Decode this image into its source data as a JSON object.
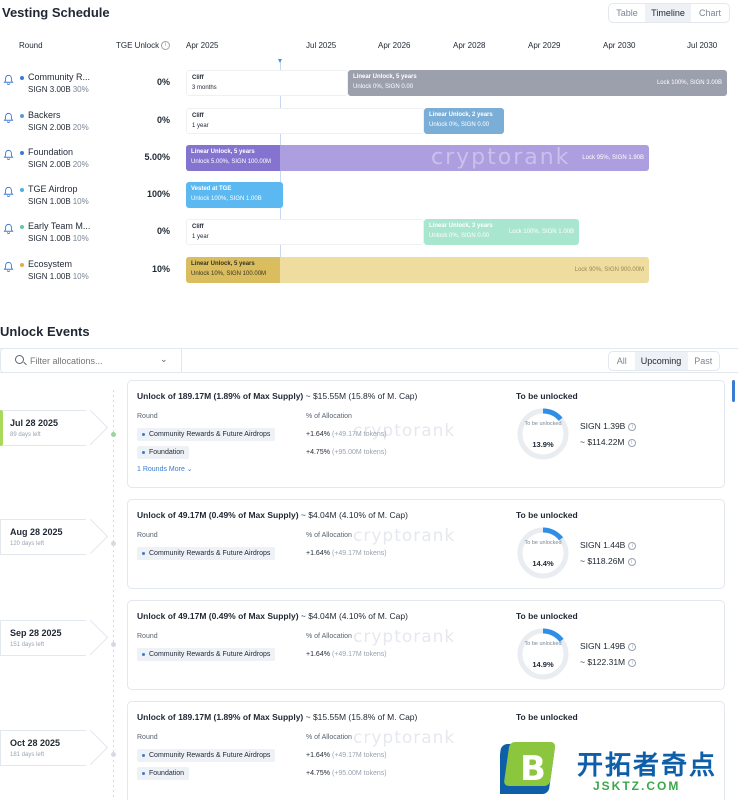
{
  "vesting": {
    "title": "Vesting Schedule",
    "views": [
      "Table",
      "Timeline",
      "Chart"
    ],
    "active_view": "Timeline",
    "headers": {
      "round": "Round",
      "tge": "TGE Unlock"
    },
    "timeline_labels": [
      "Apr 2025",
      "Jul 2025",
      "Apr 2026",
      "Apr 2028",
      "Apr 2029",
      "Apr 2030",
      "Jul 2030"
    ],
    "watermark": "cryptorank",
    "rows": [
      {
        "name": "Community R...",
        "amount": "SIGN 3.00B",
        "pct": "30%",
        "tge": "0%",
        "dot_color": "#3a7bd5",
        "cliff": {
          "l1": "Cliff",
          "l2": "3 months"
        },
        "main": {
          "l1": "Linear Unlock, 5 years",
          "l2": "Unlock 0%, SIGN 0.00",
          "right": "Lock 100%, SIGN 3.00B",
          "color": "#9c9fac"
        }
      },
      {
        "name": "Backers",
        "amount": "SIGN 2.00B",
        "pct": "20%",
        "tge": "0%",
        "dot_color": "#5a9bd5",
        "cliff": {
          "l1": "Cliff",
          "l2": "1 year"
        },
        "main": {
          "l1": "Linear Unlock, 2 years",
          "l2": "Unlock 0%, SIGN 0.00",
          "right": "",
          "color": "#7aaed6"
        }
      },
      {
        "name": "Foundation",
        "amount": "SIGN 2.00B",
        "pct": "20%",
        "tge": "5.00%",
        "dot_color": "#3a7bd5",
        "main": {
          "l1": "Linear Unlock, 5 years",
          "l2": "Unlock 5.00%, SIGN 100.00M",
          "right": "Lock 95%, SIGN 1.90B",
          "color": "#ad9ee0",
          "dark": "#8574cf"
        }
      },
      {
        "name": "TGE Airdrop",
        "amount": "SIGN 1.00B",
        "pct": "10%",
        "tge": "100%",
        "dot_color": "#4ab0e8",
        "main": {
          "l1": "Vested at TGE",
          "l2": "Unlock 100%, SIGN 1.00B",
          "right": "",
          "color": "#5bb8f0"
        }
      },
      {
        "name": "Early Team M...",
        "amount": "SIGN 1.00B",
        "pct": "10%",
        "tge": "0%",
        "dot_color": "#5cc9a7",
        "cliff": {
          "l1": "Cliff",
          "l2": "1 year"
        },
        "main": {
          "l1": "Linear Unlock, 3 years",
          "l2": "Unlock 0%, SIGN 0.00",
          "right": "Lock 100%, SIGN 1.00B",
          "color": "#a8e6cf"
        }
      },
      {
        "name": "Ecosystem",
        "amount": "SIGN 1.00B",
        "pct": "10%",
        "tge": "10%",
        "dot_color": "#e8a84a",
        "main": {
          "l1": "Linear Unlock, 5 years",
          "l2": "Unlock 10%, SIGN 100.00M",
          "right": "Lock 90%, SIGN 900.00M",
          "color": "#eedd9e",
          "dark": "#d9bd5f"
        }
      }
    ]
  },
  "events": {
    "title": "Unlock Events",
    "filter_placeholder": "Filter allocations...",
    "tabs": [
      "All",
      "Upcoming",
      "Past"
    ],
    "active_tab": "Upcoming",
    "labels": {
      "round": "Round",
      "pct_alloc": "% of Allocation",
      "to_be_unlocked": "To be unlocked",
      "donut_caption": "To be unlocked"
    },
    "items": [
      {
        "date": "Jul 28 2025",
        "days": "89 days left",
        "title_bold": "Unlock of 189.17M (1.89% of Max Supply)",
        "title_rest": " ~ $15.55M (15.8% of M. Cap)",
        "allocs": [
          {
            "name": "Community Rewards & Future Airdrops",
            "pct": "+1.64%",
            "tokens": "(+49.17M tokens)"
          },
          {
            "name": "Foundation",
            "pct": "+4.75%",
            "tokens": "(+95.00M tokens)"
          }
        ],
        "more": "1 Rounds More",
        "donut_pct": "13.9%",
        "donut_value": 13.9,
        "sign": "SIGN 1.39B",
        "usd": "~ $114.22M"
      },
      {
        "date": "Aug 28 2025",
        "days": "120 days left",
        "title_bold": "Unlock of 49.17M (0.49% of Max Supply)",
        "title_rest": " ~ $4.04M (4.10% of M. Cap)",
        "allocs": [
          {
            "name": "Community Rewards & Future Airdrops",
            "pct": "+1.64%",
            "tokens": "(+49.17M tokens)"
          }
        ],
        "donut_pct": "14.4%",
        "donut_value": 14.4,
        "sign": "SIGN 1.44B",
        "usd": "~ $118.26M"
      },
      {
        "date": "Sep 28 2025",
        "days": "151 days left",
        "title_bold": "Unlock of 49.17M (0.49% of Max Supply)",
        "title_rest": " ~ $4.04M (4.10% of M. Cap)",
        "allocs": [
          {
            "name": "Community Rewards & Future Airdrops",
            "pct": "+1.64%",
            "tokens": "(+49.17M tokens)"
          }
        ],
        "donut_pct": "14.9%",
        "donut_value": 14.9,
        "sign": "SIGN 1.49B",
        "usd": "~ $122.31M"
      },
      {
        "date": "Oct 28 2025",
        "days": "181 days left",
        "title_bold": "Unlock of 189.17M (1.89% of Max Supply)",
        "title_rest": " ~ $15.55M (15.8% of M. Cap)",
        "allocs": [
          {
            "name": "Community Rewards & Future Airdrops",
            "pct": "+1.64%",
            "tokens": "(+49.17M tokens)"
          },
          {
            "name": "Foundation",
            "pct": "+4.75%",
            "tokens": "(+95.00M tokens)"
          }
        ]
      }
    ]
  },
  "logo": {
    "cn": "开拓者奇点",
    "en": "JSKTZ.COM",
    "mark": "B"
  },
  "icons": {
    "bell": "bell-icon",
    "info": "info-icon",
    "search": "search-icon",
    "chevron": "chevron-down-icon"
  }
}
